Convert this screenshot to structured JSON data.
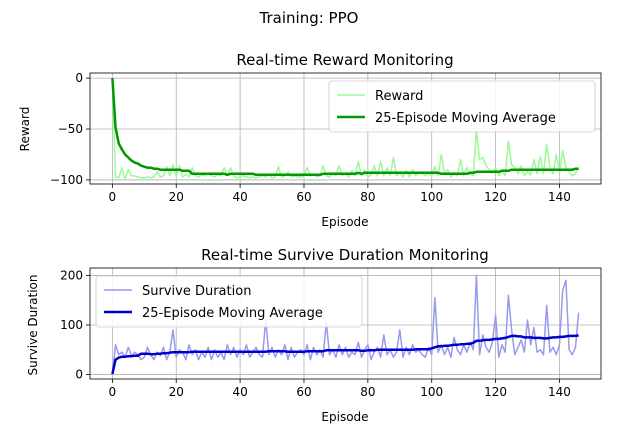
{
  "suptitle": "Training: PPO",
  "chart_data": [
    {
      "type": "line",
      "title": "Real-time Reward Monitoring",
      "xlabel": "Episode",
      "ylabel": "Reward",
      "xlim": [
        -7,
        153
      ],
      "ylim": [
        -104,
        5
      ],
      "xticks": [
        0,
        20,
        40,
        60,
        80,
        100,
        120,
        140
      ],
      "yticks": [
        0,
        -50,
        -100
      ],
      "ytick_labels": [
        "0",
        "−50",
        "−100"
      ],
      "grid": true,
      "legend_position": "upper-right",
      "series": [
        {
          "name": "Reward",
          "color": "#98fb98",
          "linewidth": 1.5,
          "values": [
            0,
            -97,
            -98,
            -88,
            -99,
            -90,
            -96,
            -96,
            -97,
            -98,
            -98,
            -97,
            -98,
            -97,
            -92,
            -97,
            -96,
            -87,
            -96,
            -85,
            -96,
            -86,
            -97,
            -95,
            -97,
            -88,
            -96,
            -97,
            -95,
            -96,
            -94,
            -96,
            -97,
            -95,
            -96,
            -88,
            -96,
            -88,
            -96,
            -98,
            -97,
            -96,
            -97,
            -98,
            -97,
            -98,
            -97,
            -96,
            -97,
            -95,
            -98,
            -97,
            -87,
            -97,
            -96,
            -92,
            -97,
            -96,
            -97,
            -97,
            -96,
            -88,
            -96,
            -95,
            -97,
            -96,
            -86,
            -96,
            -97,
            -94,
            -96,
            -86,
            -96,
            -94,
            -97,
            -91,
            -96,
            -82,
            -96,
            -90,
            -97,
            -95,
            -86,
            -96,
            -82,
            -96,
            -88,
            -96,
            -78,
            -96,
            -93,
            -97,
            -91,
            -97,
            -90,
            -96,
            -92,
            -93,
            -96,
            -94,
            -96,
            -87,
            -96,
            -75,
            -94,
            -90,
            -97,
            -94,
            -96,
            -80,
            -96,
            -88,
            -94,
            -96,
            -52,
            -80,
            -78,
            -86,
            -90,
            -93,
            -88,
            -96,
            -90,
            -96,
            -62,
            -85,
            -88,
            -94,
            -86,
            -96,
            -92,
            -95,
            -80,
            -94,
            -77,
            -94,
            -65,
            -87,
            -94,
            -75,
            -93,
            -71,
            -88,
            -92,
            -96,
            -94,
            -88
          ]
        },
        {
          "name": "25-Episode Moving Average",
          "color": "#009900",
          "linewidth": 2.5,
          "values": [
            0,
            -48,
            -64,
            -70,
            -75,
            -78,
            -81,
            -83,
            -84,
            -86,
            -87,
            -88,
            -88,
            -89,
            -89,
            -90,
            -90,
            -90,
            -90,
            -90,
            -90,
            -90,
            -91,
            -91,
            -91,
            -94,
            -94,
            -94,
            -94,
            -94,
            -94,
            -94,
            -94,
            -94,
            -94,
            -94,
            -95,
            -94,
            -94,
            -94,
            -94,
            -94,
            -94,
            -94,
            -94,
            -95,
            -95,
            -95,
            -95,
            -95,
            -95,
            -95,
            -95,
            -95,
            -95,
            -95,
            -95,
            -95,
            -95,
            -95,
            -95,
            -95,
            -95,
            -95,
            -95,
            -95,
            -94,
            -94,
            -94,
            -94,
            -94,
            -94,
            -94,
            -94,
            -94,
            -94,
            -94,
            -93,
            -94,
            -93,
            -93,
            -93,
            -93,
            -93,
            -93,
            -93,
            -93,
            -93,
            -93,
            -93,
            -93,
            -93,
            -93,
            -93,
            -93,
            -93,
            -93,
            -93,
            -93,
            -93,
            -93,
            -93,
            -93,
            -94,
            -94,
            -94,
            -94,
            -94,
            -94,
            -94,
            -94,
            -94,
            -93,
            -93,
            -92,
            -92,
            -92,
            -92,
            -92,
            -92,
            -92,
            -92,
            -91,
            -91,
            -91,
            -90,
            -90,
            -90,
            -90,
            -90,
            -90,
            -90,
            -90,
            -90,
            -90,
            -90,
            -90,
            -90,
            -90,
            -90,
            -90,
            -90,
            -90,
            -90,
            -90,
            -89,
            -89
          ]
        }
      ]
    },
    {
      "type": "line",
      "title": "Real-time Survive Duration Monitoring",
      "xlabel": "Episode",
      "ylabel": "Survive Duration",
      "xlim": [
        -7,
        153
      ],
      "ylim": [
        -9,
        215
      ],
      "xticks": [
        0,
        20,
        40,
        60,
        80,
        100,
        120,
        140
      ],
      "yticks": [
        0,
        100,
        200
      ],
      "ytick_labels": [
        "0",
        "100",
        "200"
      ],
      "grid": true,
      "legend_position": "upper-left",
      "series": [
        {
          "name": "Survive Duration",
          "color": "#9999ee",
          "linewidth": 1.5,
          "values": [
            1,
            60,
            40,
            45,
            35,
            55,
            38,
            45,
            40,
            30,
            35,
            55,
            40,
            30,
            45,
            38,
            55,
            30,
            45,
            90,
            35,
            50,
            45,
            30,
            60,
            40,
            50,
            30,
            45,
            35,
            55,
            30,
            50,
            35,
            45,
            30,
            60,
            40,
            55,
            35,
            50,
            40,
            60,
            35,
            45,
            55,
            40,
            35,
            110,
            40,
            55,
            35,
            50,
            40,
            60,
            30,
            55,
            35,
            45,
            50,
            40,
            60,
            30,
            55,
            40,
            50,
            35,
            105,
            40,
            50,
            35,
            60,
            40,
            55,
            35,
            45,
            40,
            65,
            35,
            50,
            60,
            30,
            45,
            55,
            35,
            80,
            40,
            50,
            35,
            45,
            90,
            35,
            55,
            40,
            60,
            45,
            50,
            40,
            35,
            55,
            40,
            155,
            45,
            60,
            40,
            55,
            35,
            75,
            50,
            40,
            60,
            45,
            65,
            50,
            200,
            40,
            80,
            55,
            45,
            65,
            120,
            35,
            60,
            45,
            160,
            90,
            40,
            55,
            70,
            45,
            110,
            60,
            95,
            45,
            50,
            40,
            140,
            45,
            55,
            40,
            60,
            170,
            190,
            50,
            40,
            55,
            125
          ]
        },
        {
          "name": "25-Episode Moving Average",
          "color": "#0000cc",
          "linewidth": 2.5,
          "values": [
            1,
            30,
            34,
            36,
            36,
            37,
            37,
            38,
            38,
            42,
            42,
            42,
            41,
            41,
            42,
            42,
            43,
            43,
            44,
            45,
            45,
            45,
            45,
            45,
            45,
            46,
            46,
            46,
            46,
            46,
            46,
            46,
            46,
            46,
            46,
            46,
            46,
            46,
            46,
            46,
            46,
            46,
            46,
            46,
            46,
            46,
            46,
            46,
            46,
            47,
            47,
            47,
            47,
            47,
            47,
            46,
            46,
            46,
            46,
            46,
            46,
            47,
            47,
            47,
            47,
            47,
            47,
            49,
            49,
            49,
            49,
            49,
            49,
            49,
            49,
            49,
            49,
            49,
            48,
            48,
            49,
            49,
            49,
            50,
            50,
            50,
            50,
            50,
            50,
            50,
            50,
            50,
            50,
            50,
            50,
            51,
            51,
            51,
            51,
            51,
            53,
            55,
            57,
            57,
            58,
            58,
            59,
            60,
            60,
            61,
            61,
            62,
            62,
            64,
            68,
            68,
            69,
            70,
            70,
            71,
            72,
            72,
            73,
            74,
            76,
            78,
            78,
            77,
            77,
            75,
            75,
            75,
            74,
            74,
            74,
            73,
            73,
            74,
            75,
            75,
            76,
            76,
            77,
            78,
            78,
            78,
            79
          ]
        }
      ]
    }
  ]
}
